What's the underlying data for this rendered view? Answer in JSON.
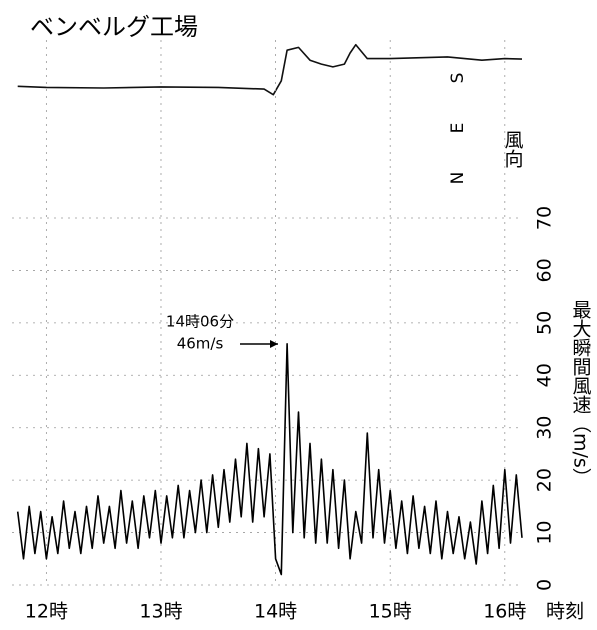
{
  "chart_data": [
    {
      "type": "line",
      "title": "ベンベルグ工場",
      "ylabel": "風向",
      "x": [
        11.75,
        12,
        12.5,
        13,
        13.5,
        13.9,
        13.98,
        14.05,
        14.1,
        14.2,
        14.3,
        14.4,
        14.5,
        14.6,
        14.65,
        14.7,
        14.8,
        15,
        15.5,
        15.8,
        16,
        16.15
      ],
      "values": [
        165,
        163,
        162,
        164,
        163,
        160,
        150,
        175,
        230,
        235,
        212,
        205,
        200,
        205,
        225,
        240,
        215,
        215,
        218,
        212,
        215,
        214
      ],
      "color": "#111111",
      "xlim": [
        11.7,
        16.15
      ],
      "ylim": [
        0,
        270
      ],
      "yticks": [
        {
          "value": 0,
          "label": "N"
        },
        {
          "value": 90,
          "label": "E"
        },
        {
          "value": 180,
          "label": "S"
        }
      ]
    },
    {
      "type": "line",
      "ylabel": "最大瞬間風速（m/s）",
      "xlabel": "時刻",
      "annotations": [
        "14時06分",
        "46m/s"
      ],
      "x": [
        11.75,
        11.8,
        11.85,
        11.9,
        11.95,
        12.0,
        12.05,
        12.1,
        12.15,
        12.2,
        12.25,
        12.3,
        12.35,
        12.4,
        12.45,
        12.5,
        12.55,
        12.6,
        12.65,
        12.7,
        12.75,
        12.8,
        12.85,
        12.9,
        12.95,
        13.0,
        13.05,
        13.1,
        13.15,
        13.2,
        13.25,
        13.3,
        13.35,
        13.4,
        13.45,
        13.5,
        13.55,
        13.6,
        13.65,
        13.7,
        13.75,
        13.8,
        13.85,
        13.9,
        13.95,
        14.0,
        14.05,
        14.1,
        14.15,
        14.2,
        14.25,
        14.3,
        14.35,
        14.4,
        14.45,
        14.5,
        14.55,
        14.6,
        14.65,
        14.7,
        14.75,
        14.8,
        14.85,
        14.9,
        14.95,
        15.0,
        15.05,
        15.1,
        15.15,
        15.2,
        15.25,
        15.3,
        15.35,
        15.4,
        15.45,
        15.5,
        15.55,
        15.6,
        15.65,
        15.7,
        15.75,
        15.8,
        15.85,
        15.9,
        15.95,
        16.0,
        16.05,
        16.1,
        16.15
      ],
      "values": [
        14,
        5,
        15,
        6,
        14,
        5,
        13,
        6,
        16,
        7,
        14,
        6,
        15,
        7,
        17,
        8,
        15,
        7,
        18,
        8,
        16,
        7,
        17,
        9,
        18,
        8,
        17,
        9,
        19,
        9,
        18,
        10,
        20,
        10,
        21,
        11,
        22,
        12,
        24,
        13,
        27,
        12,
        26,
        13,
        25,
        5,
        2,
        46,
        10,
        33,
        9,
        27,
        8,
        24,
        8,
        22,
        7,
        20,
        5,
        14,
        8,
        29,
        9,
        22,
        8,
        18,
        7,
        16,
        6,
        17,
        7,
        15,
        6,
        16,
        5,
        14,
        6,
        13,
        5,
        12,
        4,
        16,
        6,
        19,
        7,
        22,
        8,
        21,
        9
      ],
      "color": "#000000",
      "xlim": [
        11.7,
        16.15
      ],
      "ylim": [
        0,
        70
      ],
      "xticks": [
        {
          "value": 12,
          "label": "12時"
        },
        {
          "value": 13,
          "label": "13時"
        },
        {
          "value": 14,
          "label": "14時"
        },
        {
          "value": 15,
          "label": "15時"
        },
        {
          "value": 16,
          "label": "16時"
        }
      ],
      "yticks": [
        0,
        10,
        20,
        30,
        40,
        50,
        60,
        70
      ],
      "grid": true
    }
  ]
}
